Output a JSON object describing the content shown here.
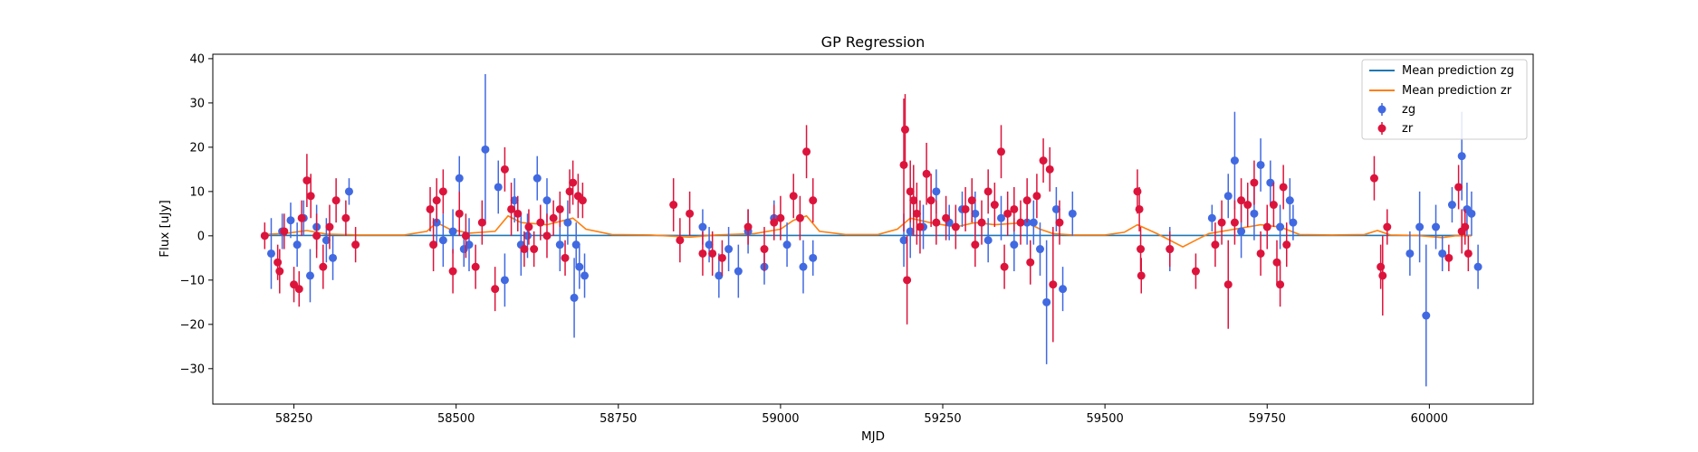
{
  "chart_data": {
    "type": "scatter",
    "title": "GP Regression",
    "xlabel": "MJD",
    "ylabel": "Flux [uJy]",
    "xlim": [
      58125,
      60160
    ],
    "ylim": [
      -38,
      41
    ],
    "xticks": [
      58250,
      58500,
      58750,
      59000,
      59250,
      59500,
      59750,
      60000
    ],
    "xtick_labels": [
      "58250",
      "58500",
      "58750",
      "59000",
      "59250",
      "59500",
      "59750",
      "60000"
    ],
    "yticks": [
      -30,
      -20,
      -10,
      0,
      10,
      20,
      30,
      40
    ],
    "ytick_labels": [
      "−30",
      "−20",
      "−10",
      "0",
      "10",
      "20",
      "30",
      "40"
    ],
    "legend": {
      "position": "top-right",
      "entries": [
        "Mean prediction zg",
        "Mean prediction zr",
        "zg",
        "zr"
      ]
    },
    "series": [
      {
        "name": "Mean prediction zg",
        "kind": "line",
        "color": "#1f77b4",
        "x": [
          58205,
          60065
        ],
        "y": [
          0.1,
          0.1
        ]
      },
      {
        "name": "Mean prediction zr",
        "kind": "line",
        "color": "#ff7f0e",
        "x": [
          58205,
          58240,
          58270,
          58300,
          58350,
          58420,
          58455,
          58470,
          58490,
          58520,
          58560,
          58580,
          58600,
          58640,
          58680,
          58700,
          58740,
          58800,
          58860,
          58900,
          58960,
          59000,
          59020,
          59040,
          59060,
          59100,
          59150,
          59180,
          59200,
          59230,
          59270,
          59300,
          59330,
          59380,
          59400,
          59420,
          59450,
          59500,
          59530,
          59550,
          59580,
          59620,
          59640,
          59660,
          59700,
          59740,
          59770,
          59800,
          59850,
          59900,
          59920,
          59940,
          59980,
          60020,
          60040,
          60065
        ],
        "y": [
          0.3,
          0.6,
          1.2,
          0.4,
          0.2,
          0.2,
          1.0,
          3.0,
          1.5,
          0.6,
          1.0,
          4.5,
          3.0,
          2.5,
          4.0,
          1.5,
          0.3,
          0.2,
          -0.3,
          0.2,
          0.5,
          1.5,
          3.5,
          4.5,
          1.0,
          0.3,
          0.3,
          1.5,
          4.0,
          3.0,
          2.0,
          3.0,
          2.5,
          3.0,
          1.5,
          0.5,
          0.2,
          0.2,
          0.8,
          2.5,
          0.5,
          -2.5,
          -1.0,
          0.5,
          1.5,
          2.5,
          2.0,
          0.3,
          0.2,
          0.3,
          1.2,
          0.2,
          0.1,
          -0.4,
          0.0,
          0.0
        ]
      },
      {
        "name": "zg",
        "kind": "errorbar",
        "color": "#4169e1",
        "points": [
          [
            58215,
            -4,
            8
          ],
          [
            58232,
            1,
            4
          ],
          [
            58245,
            3.5,
            4
          ],
          [
            58255,
            -2,
            5
          ],
          [
            58265,
            4,
            4
          ],
          [
            58275,
            -9,
            6
          ],
          [
            58285,
            2,
            5
          ],
          [
            58300,
            -1,
            5
          ],
          [
            58310,
            -5,
            5
          ],
          [
            58335,
            10,
            3
          ],
          [
            58470,
            3,
            5
          ],
          [
            58480,
            -1,
            6
          ],
          [
            58495,
            1,
            5
          ],
          [
            58505,
            13,
            5
          ],
          [
            58512,
            -3,
            4
          ],
          [
            58520,
            -2,
            6
          ],
          [
            58545,
            19.5,
            17
          ],
          [
            58565,
            11,
            6
          ],
          [
            58575,
            -10,
            6
          ],
          [
            58590,
            8,
            5
          ],
          [
            58600,
            -2,
            7
          ],
          [
            58610,
            0,
            5
          ],
          [
            58625,
            13,
            5
          ],
          [
            58640,
            8,
            5
          ],
          [
            58660,
            -2,
            6
          ],
          [
            58672,
            3,
            5
          ],
          [
            58682,
            -14,
            9
          ],
          [
            58690,
            -7,
            5
          ],
          [
            58698,
            -9,
            5
          ],
          [
            58685,
            -2,
            5
          ],
          [
            58880,
            2,
            4
          ],
          [
            58890,
            -2,
            4
          ],
          [
            58905,
            -9,
            5
          ],
          [
            58920,
            -3,
            5
          ],
          [
            58935,
            -8,
            6
          ],
          [
            58950,
            1,
            5
          ],
          [
            58975,
            -7,
            4
          ],
          [
            58990,
            4,
            4
          ],
          [
            59010,
            -2,
            5
          ],
          [
            59035,
            -7,
            6
          ],
          [
            59050,
            -5,
            4
          ],
          [
            59190,
            -1,
            6
          ],
          [
            59200,
            1,
            6
          ],
          [
            59220,
            2,
            5
          ],
          [
            59240,
            10,
            5
          ],
          [
            59260,
            3,
            4
          ],
          [
            59280,
            6,
            4
          ],
          [
            59300,
            5,
            5
          ],
          [
            59320,
            -1,
            5
          ],
          [
            59340,
            4,
            5
          ],
          [
            59360,
            -2,
            6
          ],
          [
            59380,
            3,
            5
          ],
          [
            59400,
            -3,
            6
          ],
          [
            59410,
            -15,
            14
          ],
          [
            59425,
            6,
            5
          ],
          [
            59435,
            -12,
            5
          ],
          [
            59450,
            5,
            5
          ],
          [
            59390,
            3,
            5
          ],
          [
            59600,
            -3,
            5
          ],
          [
            59665,
            4,
            3
          ],
          [
            59690,
            9,
            5
          ],
          [
            59700,
            17,
            11
          ],
          [
            59710,
            1,
            6
          ],
          [
            59730,
            5,
            6
          ],
          [
            59740,
            16,
            6
          ],
          [
            59755,
            12,
            5
          ],
          [
            59770,
            2,
            5
          ],
          [
            59785,
            8,
            5
          ],
          [
            59790,
            3,
            4
          ],
          [
            59985,
            2,
            8
          ],
          [
            59970,
            -4,
            5
          ],
          [
            59995,
            -18,
            16
          ],
          [
            60010,
            2,
            5
          ],
          [
            60020,
            -4,
            4
          ],
          [
            60035,
            7,
            4
          ],
          [
            60050,
            18,
            10
          ],
          [
            60058,
            6,
            6
          ],
          [
            60065,
            5,
            5
          ],
          [
            60075,
            -7,
            5
          ]
        ]
      },
      {
        "name": "zr",
        "kind": "errorbar",
        "color": "#dc143c",
        "points": [
          [
            58205,
            0,
            3
          ],
          [
            58225,
            -6,
            4
          ],
          [
            58228,
            -8,
            5
          ],
          [
            58235,
            1,
            4
          ],
          [
            58250,
            -11,
            4
          ],
          [
            58258,
            -12,
            4
          ],
          [
            58262,
            4,
            4
          ],
          [
            58270,
            12.5,
            6
          ],
          [
            58276,
            9,
            5
          ],
          [
            58285,
            0,
            5
          ],
          [
            58295,
            -7,
            5
          ],
          [
            58305,
            2,
            5
          ],
          [
            58315,
            8,
            5
          ],
          [
            58330,
            4,
            4
          ],
          [
            58345,
            -2,
            4
          ],
          [
            58460,
            6,
            5
          ],
          [
            58465,
            -2,
            6
          ],
          [
            58470,
            8,
            5
          ],
          [
            58480,
            10,
            5
          ],
          [
            58495,
            -8,
            5
          ],
          [
            58505,
            5,
            5
          ],
          [
            58515,
            0,
            5
          ],
          [
            58530,
            -7,
            5
          ],
          [
            58540,
            3,
            5
          ],
          [
            58560,
            -12,
            5
          ],
          [
            58575,
            15,
            5
          ],
          [
            58585,
            6,
            6
          ],
          [
            58595,
            5,
            4
          ],
          [
            58605,
            -3,
            4
          ],
          [
            58612,
            2,
            4
          ],
          [
            58620,
            -3,
            4
          ],
          [
            58630,
            3,
            4
          ],
          [
            58640,
            0,
            5
          ],
          [
            58650,
            4,
            4
          ],
          [
            58660,
            6,
            4
          ],
          [
            58668,
            -5,
            4
          ],
          [
            58675,
            10,
            5
          ],
          [
            58680,
            12,
            5
          ],
          [
            58688,
            9,
            5
          ],
          [
            58695,
            8,
            4
          ],
          [
            58835,
            7,
            6
          ],
          [
            58845,
            -1,
            5
          ],
          [
            58860,
            5,
            5
          ],
          [
            58880,
            -4,
            5
          ],
          [
            58895,
            -4,
            5
          ],
          [
            58910,
            -5,
            4
          ],
          [
            58950,
            2,
            4
          ],
          [
            58975,
            -3,
            5
          ],
          [
            59000,
            4,
            5
          ],
          [
            59020,
            9,
            5
          ],
          [
            59030,
            4,
            5
          ],
          [
            59040,
            19,
            6
          ],
          [
            59050,
            8,
            5
          ],
          [
            58990,
            3,
            4
          ],
          [
            59190,
            16,
            15
          ],
          [
            59192,
            24,
            8
          ],
          [
            59195,
            -10,
            10
          ],
          [
            59200,
            10,
            7
          ],
          [
            59205,
            8,
            8
          ],
          [
            59210,
            5,
            7
          ],
          [
            59215,
            2,
            6
          ],
          [
            59225,
            14,
            7
          ],
          [
            59232,
            8,
            6
          ],
          [
            59240,
            3,
            5
          ],
          [
            59255,
            4,
            5
          ],
          [
            59270,
            2,
            5
          ],
          [
            59285,
            6,
            5
          ],
          [
            59295,
            8,
            5
          ],
          [
            59310,
            3,
            5
          ],
          [
            59320,
            10,
            5
          ],
          [
            59330,
            7,
            5
          ],
          [
            59340,
            19,
            6
          ],
          [
            59350,
            5,
            5
          ],
          [
            59360,
            6,
            5
          ],
          [
            59370,
            3,
            5
          ],
          [
            59380,
            8,
            5
          ],
          [
            59395,
            9,
            5
          ],
          [
            59405,
            17,
            5
          ],
          [
            59415,
            15,
            5
          ],
          [
            59420,
            -11,
            13
          ],
          [
            59430,
            3,
            5
          ],
          [
            59385,
            -6,
            5
          ],
          [
            59345,
            -7,
            5
          ],
          [
            59300,
            -2,
            5
          ],
          [
            59550,
            10,
            5
          ],
          [
            59553,
            6,
            5
          ],
          [
            59555,
            -3,
            5
          ],
          [
            59556,
            -9,
            4
          ],
          [
            59600,
            -3,
            4
          ],
          [
            59640,
            -8,
            4
          ],
          [
            59670,
            -2,
            5
          ],
          [
            59680,
            3,
            5
          ],
          [
            59690,
            -11,
            10
          ],
          [
            59700,
            3,
            5
          ],
          [
            59710,
            8,
            5
          ],
          [
            59720,
            7,
            5
          ],
          [
            59730,
            12,
            5
          ],
          [
            59740,
            -4,
            5
          ],
          [
            59750,
            2,
            5
          ],
          [
            59760,
            7,
            5
          ],
          [
            59765,
            -6,
            5
          ],
          [
            59770,
            -11,
            5
          ],
          [
            59775,
            11,
            5
          ],
          [
            59780,
            -2,
            5
          ],
          [
            59915,
            13,
            5
          ],
          [
            59925,
            -7,
            5
          ],
          [
            59928,
            -9,
            9
          ],
          [
            59935,
            2,
            4
          ],
          [
            60030,
            -5,
            3
          ],
          [
            60045,
            11,
            5
          ],
          [
            60050,
            1,
            5
          ],
          [
            60055,
            2,
            4
          ],
          [
            60060,
            -4,
            4
          ]
        ]
      }
    ]
  }
}
